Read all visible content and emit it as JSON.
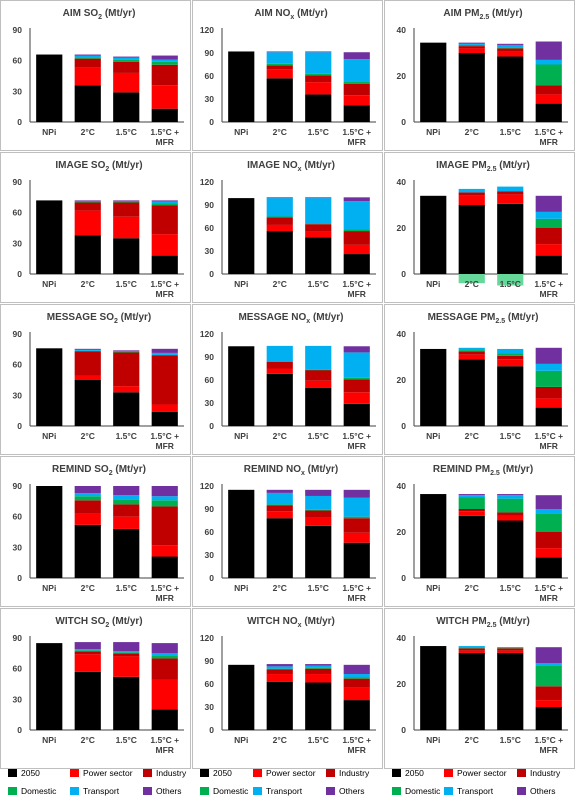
{
  "colors": {
    "2050": "#000000",
    "Power sector": "#ff0000",
    "Industry": "#c00000",
    "Domestic": "#00b050",
    "Transport": "#00b0f0",
    "Others": "#7030a0"
  },
  "legend": {
    "labels": [
      "2050",
      "Power sector",
      "Industry",
      "Domestic",
      "Transport",
      "Others"
    ]
  },
  "categories": [
    "NPi",
    "2°C",
    "1.5°C",
    "1.5°C + MFR"
  ],
  "chart_data": [
    {
      "type": "bar",
      "model": "AIM",
      "species": "SO",
      "sub": "2",
      "unit": "(Mt/yr)",
      "ylim": [
        0,
        90
      ],
      "yticks": [
        0,
        30,
        60,
        90
      ],
      "bars": [
        [
          66,
          0,
          0,
          0,
          0,
          0
        ],
        [
          36,
          17,
          9,
          1,
          2,
          1
        ],
        [
          29,
          19,
          11,
          2,
          2,
          1
        ],
        [
          13,
          23,
          20,
          3,
          2,
          4
        ]
      ]
    },
    {
      "type": "bar",
      "model": "AIM",
      "species": "NO",
      "sub": "x",
      "unit": "(Mt/yr)",
      "ylim": [
        0,
        120
      ],
      "yticks": [
        0,
        30,
        60,
        90,
        120
      ],
      "bars": [
        [
          92,
          0,
          0,
          0,
          0,
          0
        ],
        [
          57,
          12,
          5,
          2,
          15,
          1
        ],
        [
          36,
          16,
          9,
          2,
          28,
          1
        ],
        [
          22,
          13,
          15,
          3,
          29,
          9
        ]
      ]
    },
    {
      "type": "bar",
      "model": "AIM",
      "species": "PM",
      "sub": "2.5",
      "unit": "(Mt/yr)",
      "ylim": [
        0,
        40
      ],
      "yticks": [
        0,
        20,
        40
      ],
      "bars": [
        [
          34.5,
          0,
          0,
          0,
          0,
          0
        ],
        [
          30,
          2,
          1,
          0.5,
          0.5,
          0.5
        ],
        [
          28.5,
          2,
          1.5,
          0.5,
          1,
          0.5
        ],
        [
          8,
          4,
          4,
          9,
          2,
          8
        ]
      ]
    },
    {
      "type": "bar",
      "model": "IMAGE",
      "species": "SO",
      "sub": "2",
      "unit": "(Mt/yr)",
      "ylim": [
        0,
        90
      ],
      "yticks": [
        0,
        30,
        60,
        90
      ],
      "bars": [
        [
          72,
          0,
          0,
          0,
          0,
          0
        ],
        [
          38,
          24,
          8,
          0.5,
          0.5,
          1
        ],
        [
          35,
          21,
          14,
          0.5,
          0.5,
          1
        ],
        [
          18,
          21,
          28,
          2,
          2,
          1
        ]
      ]
    },
    {
      "type": "bar",
      "model": "IMAGE",
      "species": "NO",
      "sub": "x",
      "unit": "(Mt/yr)",
      "ylim": [
        0,
        120
      ],
      "yticks": [
        0,
        30,
        60,
        90,
        120
      ],
      "bars": [
        [
          99,
          0,
          0,
          0,
          0,
          0
        ],
        [
          56,
          8,
          10,
          1,
          24,
          1
        ],
        [
          48,
          7,
          10,
          1,
          33,
          1
        ],
        [
          26,
          12,
          18,
          2,
          37,
          5
        ]
      ]
    },
    {
      "type": "bar",
      "model": "IMAGE",
      "species": "PM",
      "sub": "2.5",
      "unit": "(Mt/yr)",
      "ylim": [
        0,
        40
      ],
      "yticks": [
        0,
        20,
        40
      ],
      "bars": [
        [
          34,
          0,
          0,
          0,
          0,
          0
        ],
        [
          30,
          4,
          1.5,
          -4,
          1.5,
          0
        ],
        [
          30.5,
          4,
          1.5,
          -5,
          2,
          0
        ],
        [
          8,
          5,
          7,
          4,
          3,
          7
        ]
      ]
    },
    {
      "type": "bar",
      "model": "MESSAGE",
      "species": "SO",
      "sub": "2",
      "unit": "(Mt/yr)",
      "ylim": [
        0,
        90
      ],
      "yticks": [
        0,
        30,
        60,
        90
      ],
      "bars": [
        [
          76,
          0,
          0,
          0,
          0,
          0
        ],
        [
          45,
          4,
          24,
          0.5,
          1,
          1
        ],
        [
          33,
          6,
          33,
          0.5,
          0.5,
          1
        ],
        [
          14,
          7,
          48,
          0.5,
          2,
          4
        ]
      ]
    },
    {
      "type": "bar",
      "model": "MESSAGE",
      "species": "NO",
      "sub": "x",
      "unit": "(Mt/yr)",
      "ylim": [
        0,
        120
      ],
      "yticks": [
        0,
        30,
        60,
        90,
        120
      ],
      "bars": [
        [
          104,
          0,
          0,
          0,
          0,
          0
        ],
        [
          68,
          7,
          9,
          0.5,
          20,
          0
        ],
        [
          50,
          9,
          14,
          0.5,
          31,
          0
        ],
        [
          29,
          15,
          17,
          2,
          33,
          8
        ]
      ]
    },
    {
      "type": "bar",
      "model": "MESSAGE",
      "species": "PM",
      "sub": "2.5",
      "unit": "(Mt/yr)",
      "ylim": [
        0,
        40
      ],
      "yticks": [
        0,
        20,
        40
      ],
      "bars": [
        [
          33.5,
          0,
          0,
          0,
          0,
          0
        ],
        [
          29,
          2,
          1.5,
          0.5,
          1,
          0
        ],
        [
          26,
          3,
          1.5,
          1,
          2,
          0
        ],
        [
          8,
          4,
          5,
          7,
          3,
          7
        ]
      ]
    },
    {
      "type": "bar",
      "model": "REMIND",
      "species": "SO",
      "sub": "2",
      "unit": "(Mt/yr)",
      "ylim": [
        0,
        90
      ],
      "yticks": [
        0,
        30,
        60,
        90
      ],
      "bars": [
        [
          90,
          0,
          0,
          0,
          0,
          0
        ],
        [
          52,
          11,
          13,
          4,
          3,
          7
        ],
        [
          48,
          12,
          12,
          5,
          4,
          9
        ],
        [
          21,
          11,
          38,
          6,
          4,
          10
        ]
      ]
    },
    {
      "type": "bar",
      "model": "REMIND",
      "species": "NO",
      "sub": "x",
      "unit": "(Mt/yr)",
      "ylim": [
        0,
        120
      ],
      "yticks": [
        0,
        30,
        60,
        90,
        120
      ],
      "bars": [
        [
          115,
          0,
          0,
          0,
          0,
          0
        ],
        [
          78,
          9,
          8,
          1,
          15,
          4
        ],
        [
          68,
          11,
          9,
          1,
          18,
          8
        ],
        [
          46,
          13,
          19,
          2,
          25,
          10
        ]
      ]
    },
    {
      "type": "bar",
      "model": "REMIND",
      "species": "PM",
      "sub": "2.5",
      "unit": "(Mt/yr)",
      "ylim": [
        0,
        40
      ],
      "yticks": [
        0,
        20,
        40
      ],
      "bars": [
        [
          36.5,
          0,
          0,
          0,
          0,
          0
        ],
        [
          27,
          2,
          1,
          5,
          1,
          0.5
        ],
        [
          25,
          2,
          1.5,
          6,
          1.5,
          0.5
        ],
        [
          9,
          4,
          7,
          8,
          2,
          6
        ]
      ]
    },
    {
      "type": "bar",
      "model": "WITCH",
      "species": "SO",
      "sub": "2",
      "unit": "(Mt/yr)",
      "ylim": [
        0,
        90
      ],
      "yticks": [
        0,
        30,
        60,
        90
      ],
      "bars": [
        [
          85,
          0,
          0,
          0,
          0,
          0
        ],
        [
          57,
          17,
          3,
          1,
          1,
          7
        ],
        [
          52,
          20,
          3,
          1,
          1,
          9
        ],
        [
          20,
          29,
          21,
          3,
          2,
          10
        ]
      ]
    },
    {
      "type": "bar",
      "model": "WITCH",
      "species": "NO",
      "sub": "x",
      "unit": "(Mt/yr)",
      "ylim": [
        0,
        120
      ],
      "yticks": [
        0,
        30,
        60,
        90,
        120
      ],
      "bars": [
        [
          85,
          0,
          0,
          0,
          0,
          0
        ],
        [
          63,
          10,
          6,
          1,
          3,
          3
        ],
        [
          62,
          11,
          7,
          1,
          3,
          2
        ],
        [
          39,
          16,
          12,
          2,
          4,
          12
        ]
      ]
    },
    {
      "type": "bar",
      "model": "WITCH",
      "species": "PM",
      "sub": "2.5",
      "unit": "(Mt/yr)",
      "ylim": [
        0,
        40
      ],
      "yticks": [
        0,
        20,
        40
      ],
      "bars": [
        [
          36.5,
          0,
          0,
          0,
          0,
          0
        ],
        [
          33.5,
          1,
          1,
          0.5,
          0.5,
          0
        ],
        [
          33.5,
          1,
          1,
          0.5,
          0,
          0
        ],
        [
          10,
          3,
          6,
          9,
          1,
          7
        ]
      ]
    }
  ]
}
